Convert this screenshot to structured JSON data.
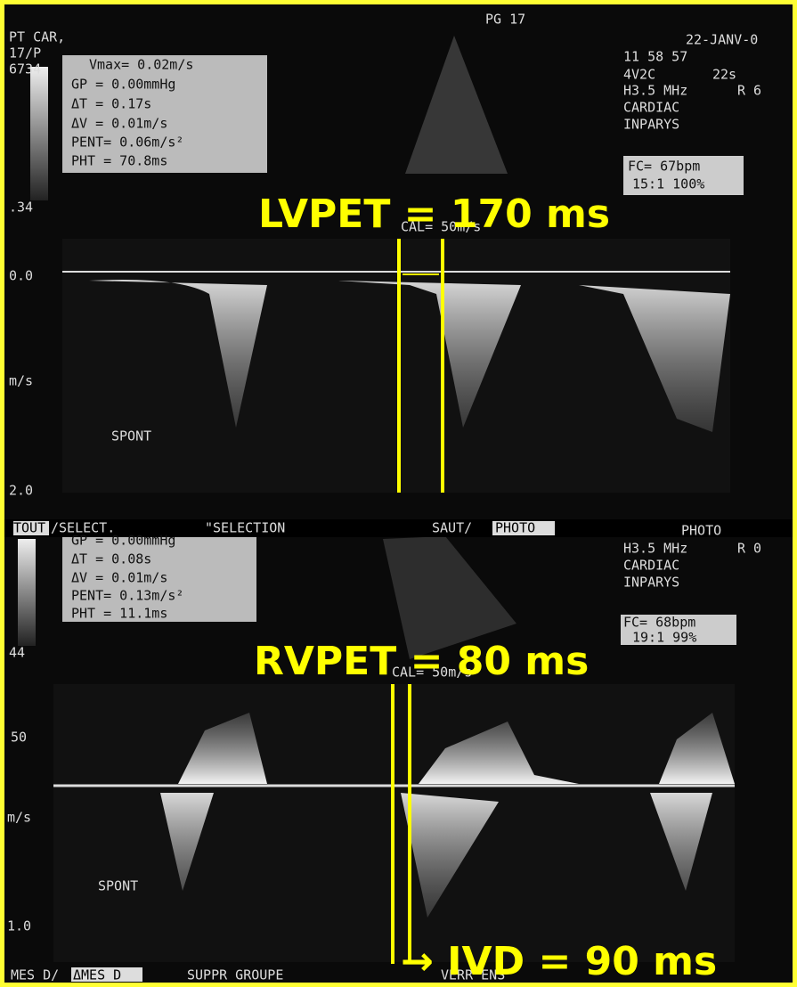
{
  "top_panel": {
    "page": "PG 17",
    "patient": [
      "PT CAR,",
      "17/P",
      "6734"
    ],
    "date": "22-JANV-0",
    "time": "11 58 57",
    "probe": "4V2C",
    "duration": "22s",
    "frequency": "H3.5 MHz",
    "range": "R 6",
    "preset": "CARDIAC",
    "site": "INPARYS",
    "measurements": [
      "Vmax= 0.02m/s",
      "GP   = 0.00mmHg",
      "ΔT   = 0.17s",
      "ΔV   = 0.01m/s",
      "PENT= 0.06m/s²",
      "PHT = 70.8ms"
    ],
    "heart_rate": "FC= 67bpm",
    "frame_rate": "15:1 100%",
    "gray_scale": ".34",
    "annotation": "LVPET = 170 ms",
    "calibration": "CAL= 50m/s",
    "scale": [
      "0.0",
      "m/s",
      "2.0"
    ],
    "trace_label": "SPONT"
  },
  "menu": {
    "items": [
      "TOUT",
      "/SELECT.",
      "\"SELECTION",
      "SAUT/",
      "PHOTO",
      "PHOTO"
    ]
  },
  "bottom_panel": {
    "frequency": "H3.5 MHz",
    "range": "R 0",
    "preset": "CARDIAC",
    "site": "INPARYS",
    "measurements": [
      "GP   = 0.00mmHg",
      "ΔT   = 0.08s",
      "ΔV   = 0.01m/s",
      "PENT= 0.13m/s²",
      "PHT = 11.1ms"
    ],
    "heart_rate": "FC= 68bpm",
    "frame_rate": "19:1 99%",
    "gray_scale": "44",
    "annotation": "RVPET = 80 ms",
    "calibration": "CAL= 50m/s",
    "scale": [
      "50",
      "m/s",
      "1.0"
    ],
    "trace_label": "SPONT"
  },
  "footer": {
    "items": [
      "MES D/",
      "ΔMES D",
      "SUPPR GROUPE",
      "VERR ENS"
    ],
    "annotation": "→ IVD = 90 ms"
  }
}
